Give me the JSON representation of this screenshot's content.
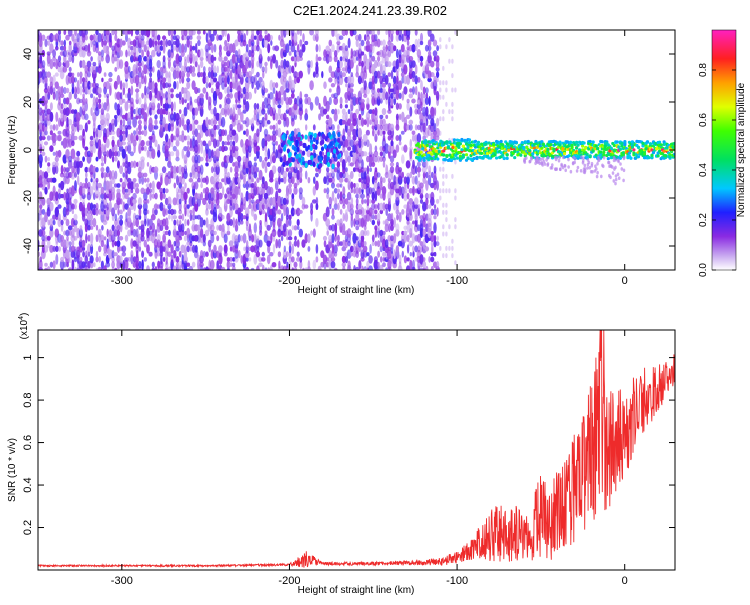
{
  "title": "C2E1.2024.241.23.39.R02",
  "chart_data": [
    {
      "type": "heatmap",
      "xlabel": "Height of straight line (km)",
      "ylabel": "Frequency (Hz)",
      "xlim": [
        -350,
        30
      ],
      "ylim": [
        -50,
        50
      ],
      "xticks": [
        -300,
        -200,
        -100,
        0
      ],
      "yticks": [
        -40,
        -20,
        0,
        20,
        40
      ],
      "grid": false,
      "colorbar": {
        "label": "Normalized spectral amplitude",
        "range": [
          0,
          0.96
        ],
        "ticks": [
          0.0,
          0.2,
          0.4,
          0.6,
          0.8
        ],
        "tick_labels": [
          "0.0",
          "0.2",
          "0.4",
          "0.6",
          "0.8"
        ],
        "colormap": "rainbow (white-violet-blue-cyan-green-yellow-orange-red-magenta)"
      },
      "features": [
        {
          "x_range": [
            -350,
            -110
          ],
          "y_range": [
            -50,
            50
          ],
          "amplitude": [
            0.05,
            0.2
          ],
          "description": "broadband noise"
        },
        {
          "x_range": [
            -205,
            -170
          ],
          "y_center": 0,
          "amplitude": [
            0.15,
            0.35
          ],
          "description": "weak cluster near 0 Hz"
        },
        {
          "x_range": [
            -125,
            30
          ],
          "y_center": 0,
          "y_halfwidth": 4,
          "amplitude": [
            0.3,
            0.95
          ],
          "description": "narrow band near 0 Hz"
        }
      ]
    },
    {
      "type": "line",
      "xlabel": "Height of straight line (km)",
      "ylabel": "SNR (10 * v/v)",
      "y_scale_label": "(x10",
      "y_scale_exponent": "4",
      "y_scale_suffix": ")",
      "xlim": [
        -350,
        30
      ],
      "ylim": [
        0.0,
        1.13
      ],
      "xticks": [
        -300,
        -200,
        -100,
        0
      ],
      "yticks": [
        0.2,
        0.4,
        0.6,
        0.8,
        1.0
      ],
      "grid": false,
      "series": [
        {
          "color": "#ee2b2b",
          "x": [
            -350,
            -300,
            -250,
            -200,
            -190,
            -180,
            -150,
            -120,
            -110,
            -100,
            -90,
            -85,
            -80,
            -75,
            -70,
            -65,
            -60,
            -55,
            -50,
            -45,
            -40,
            -35,
            -30,
            -25,
            -20,
            -15,
            -12,
            -10,
            -5,
            0,
            5,
            10,
            15,
            20,
            25,
            30
          ],
          "y": [
            0.02,
            0.02,
            0.02,
            0.025,
            0.05,
            0.03,
            0.03,
            0.035,
            0.04,
            0.06,
            0.1,
            0.14,
            0.16,
            0.18,
            0.15,
            0.18,
            0.14,
            0.2,
            0.25,
            0.2,
            0.3,
            0.35,
            0.4,
            0.45,
            0.55,
            0.7,
            0.6,
            0.55,
            0.62,
            0.66,
            0.72,
            0.78,
            0.82,
            0.86,
            0.9,
            0.95
          ],
          "amplitude": [
            0.004,
            0.004,
            0.004,
            0.005,
            0.04,
            0.008,
            0.008,
            0.012,
            0.02,
            0.03,
            0.05,
            0.1,
            0.12,
            0.14,
            0.12,
            0.14,
            0.1,
            0.16,
            0.2,
            0.18,
            0.22,
            0.24,
            0.28,
            0.3,
            0.34,
            0.42,
            0.32,
            0.3,
            0.25,
            0.22,
            0.2,
            0.17,
            0.14,
            0.11,
            0.09,
            0.07
          ]
        }
      ]
    }
  ]
}
